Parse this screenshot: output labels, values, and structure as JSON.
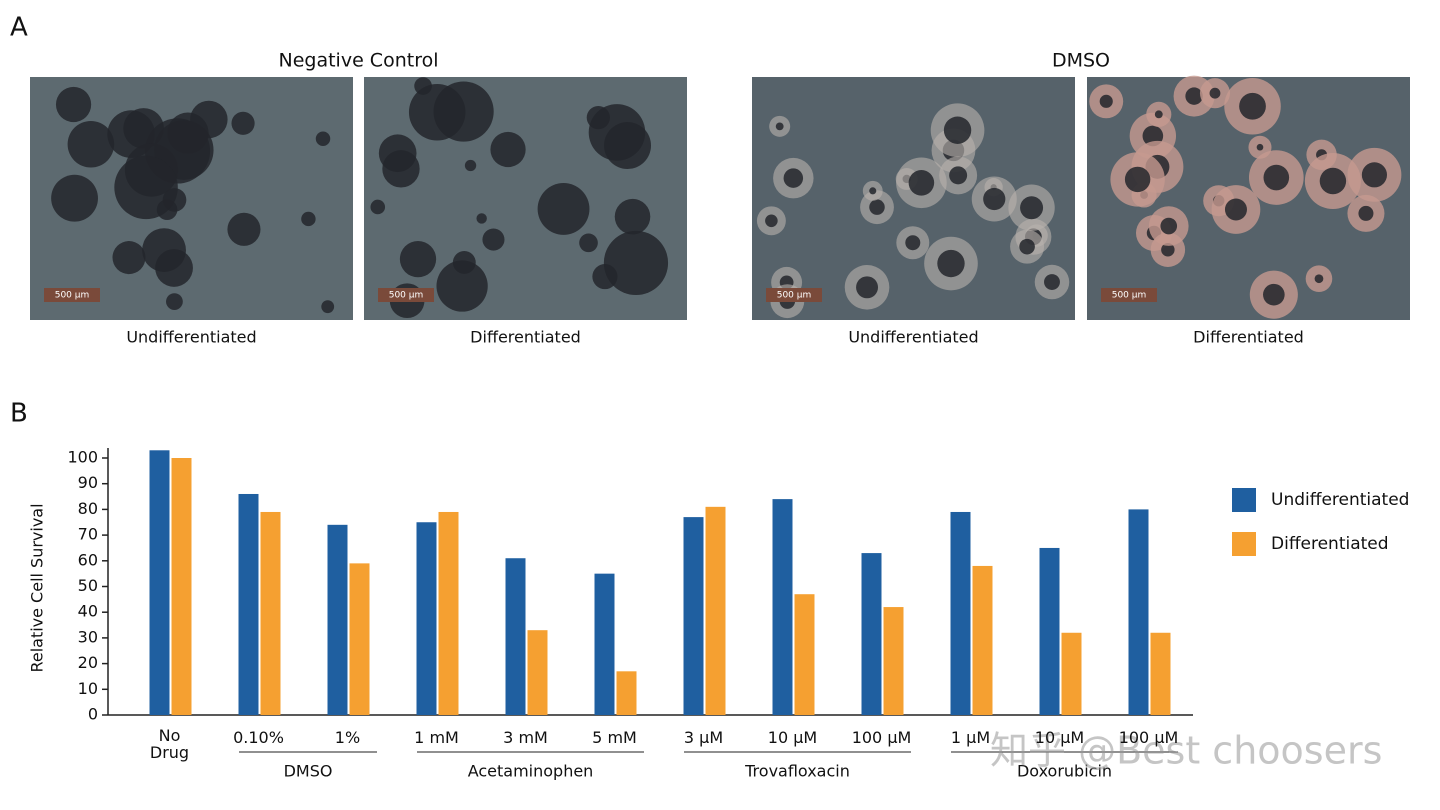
{
  "panel_a": {
    "label": "A",
    "groups": [
      {
        "title": "Negative Control",
        "images": [
          {
            "caption": "Undifferentiated",
            "scale_bar": "500 μm"
          },
          {
            "caption": "Differentiated",
            "scale_bar": "500 μm"
          }
        ]
      },
      {
        "title": "DMSO",
        "images": [
          {
            "caption": "Undifferentiated",
            "scale_bar": "500 μm"
          },
          {
            "caption": "Differentiated",
            "scale_bar": "500 μm"
          }
        ]
      }
    ]
  },
  "chart_data": {
    "type": "bar",
    "panel_label": "B",
    "y_label": "Relative Cell Survival",
    "categories": [
      "No Drug",
      "0.10%",
      "1%",
      "1 mM",
      "3 mM",
      "5 mM",
      "3 μM",
      "10 μM",
      "100 μM",
      "1 μM",
      "10 μM",
      "100 μM"
    ],
    "groups": [
      {
        "size": 1
      },
      {
        "name": "DMSO",
        "size": 2
      },
      {
        "name": "Acetaminophen",
        "size": 3
      },
      {
        "name": "Trovafloxacin",
        "size": 3
      },
      {
        "name": "Doxorubicin",
        "size": 3
      }
    ],
    "series": [
      {
        "name": "Undifferentiated",
        "color": "#1f5fa0",
        "values": [
          103,
          86,
          74,
          75,
          61,
          55,
          77,
          84,
          63,
          79,
          65,
          80
        ]
      },
      {
        "name": "Differentiated",
        "color": "#f5a031",
        "values": [
          100,
          79,
          59,
          79,
          33,
          17,
          81,
          47,
          42,
          58,
          32,
          32
        ]
      }
    ],
    "ylim": [
      0,
      100
    ],
    "yticks": [
      0,
      10,
      20,
      30,
      40,
      50,
      60,
      70,
      80,
      90,
      100
    ],
    "legend": "right"
  },
  "watermark": "知乎 @Best choosers"
}
